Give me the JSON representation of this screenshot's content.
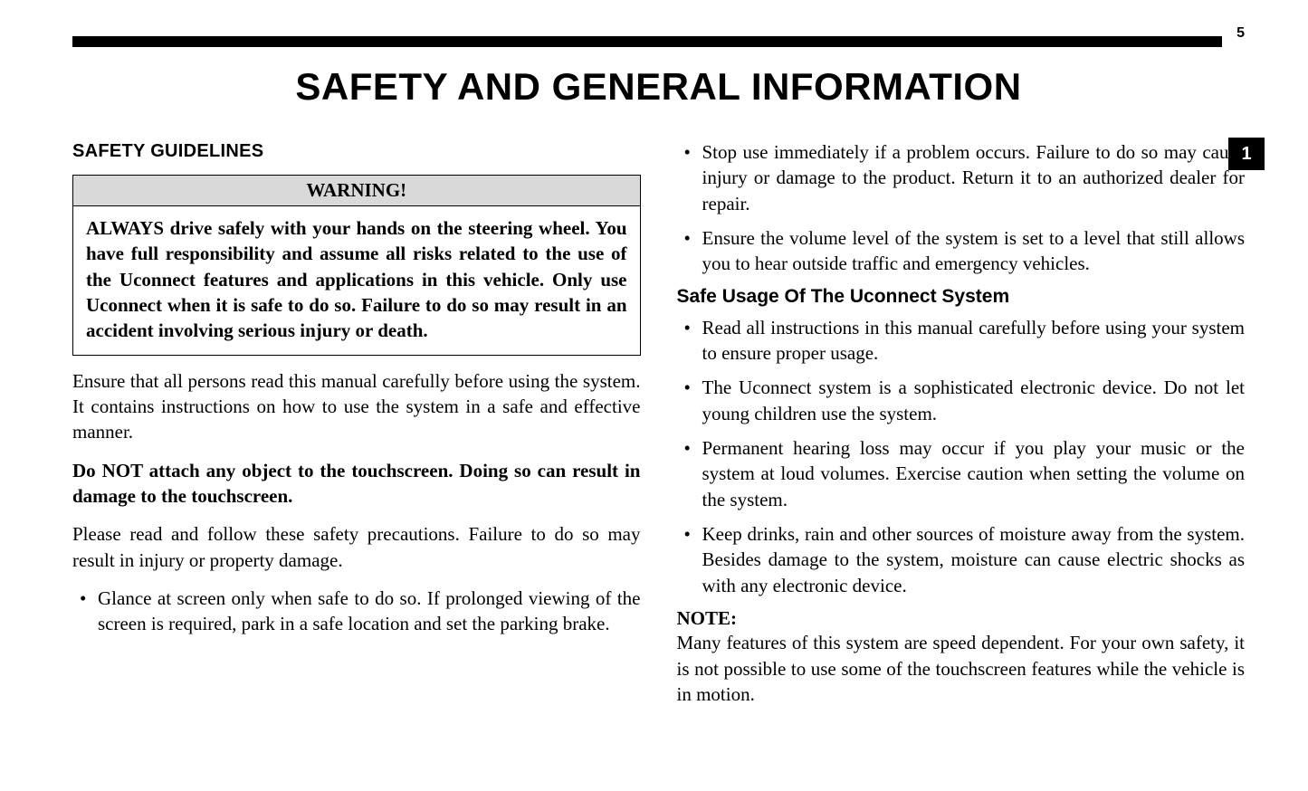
{
  "page_number_top": "5",
  "side_tab": "1",
  "title": "SAFETY AND GENERAL INFORMATION",
  "left": {
    "section_heading": "SAFETY GUIDELINES",
    "warning": {
      "header": "WARNING!",
      "body": "ALWAYS drive safely with your hands on the steering wheel. You have full responsibility and assume all risks related to the use of the Uconnect features and applications in this vehicle. Only use Uconnect when it is safe to do so. Failure to do so may result in an accident involving serious injury or death."
    },
    "para1": "Ensure that all persons read this manual carefully before using the system. It contains instructions on how to use the system in a safe and effective manner.",
    "para2_bold": "Do NOT attach any object to the touchscreen. Doing so can result in damage to the touchscreen.",
    "para3": "Please read and follow these safety precautions. Failure to do so may result in injury or property damage.",
    "bullets": [
      "Glance at screen only when safe to do so. If prolonged viewing of the screen is required, park in a safe location and set the parking brake."
    ]
  },
  "right": {
    "top_bullets": [
      "Stop use immediately if a problem occurs. Failure to do so may cause injury or damage to the product. Return it to an authorized dealer for repair.",
      "Ensure the volume level of the system is set to a level that still allows you to hear outside traffic and emergency vehicles."
    ],
    "sub_heading": "Safe Usage Of The Uconnect System",
    "bullets": [
      "Read all instructions in this manual carefully before using your system to ensure proper usage.",
      "The Uconnect system is a sophisticated electronic device. Do not let young children use the system.",
      "Permanent hearing loss may occur if you play your music or the system at loud volumes. Exercise caution when setting the volume on the system.",
      "Keep drinks, rain and other sources of moisture away from the system. Besides damage to the system, moisture can cause electric shocks as with any electronic device."
    ],
    "note_label": "NOTE:",
    "note_body": "Many features of this system are speed dependent. For your own safety, it is not possible to use some of the touchscreen features while the vehicle is in motion."
  },
  "style": {
    "rule_color": "#000000",
    "warning_header_bg": "#d9d9d9",
    "body_font_size_pt": 16,
    "heading_font": "Arial",
    "body_font": "Georgia"
  }
}
